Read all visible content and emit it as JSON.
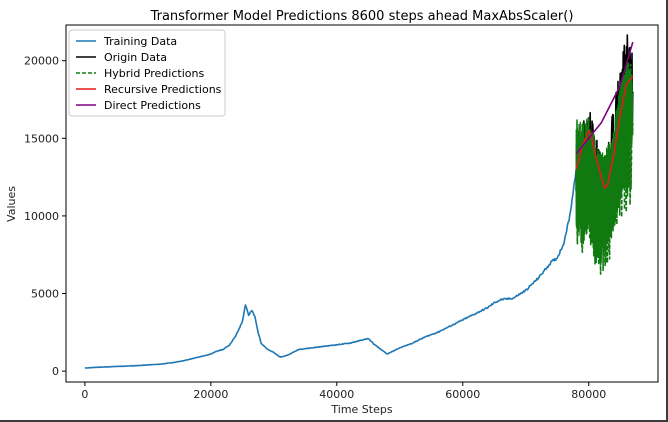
{
  "chart_data": {
    "type": "line",
    "title": "Transformer Model Predictions 8600 steps ahead MaxAbsScaler()",
    "xlabel": "Time Steps",
    "ylabel": "Values",
    "xlim": [
      -3000,
      91000
    ],
    "ylim": [
      -700,
      22300
    ],
    "xticks": [
      0,
      20000,
      40000,
      60000,
      80000
    ],
    "xtick_labels": [
      "0",
      "20000",
      "40000",
      "60000",
      "80000"
    ],
    "yticks": [
      0,
      5000,
      10000,
      15000,
      20000
    ],
    "ytick_labels": [
      "0",
      "5000",
      "10000",
      "15000",
      "20000"
    ],
    "grid": false,
    "legend_position": "top-left",
    "series": [
      {
        "name": "Training Data",
        "color": "#1f77b4",
        "style": "solid",
        "x": [
          0,
          2000,
          5000,
          8000,
          10000,
          12000,
          14000,
          16000,
          18000,
          19000,
          20000,
          21000,
          22000,
          23000,
          24000,
          25000,
          25500,
          26000,
          26500,
          27000,
          27500,
          28000,
          29000,
          30000,
          31000,
          32000,
          33000,
          34000,
          36000,
          38000,
          40000,
          42000,
          44000,
          45000,
          46000,
          47000,
          48000,
          50000,
          52000,
          54000,
          56000,
          58000,
          60000,
          62000,
          64000,
          65000,
          66000,
          68000,
          70000,
          72000,
          74000,
          75000,
          76000,
          77000,
          77500,
          78000
        ],
        "y": [
          200,
          250,
          300,
          350,
          400,
          450,
          550,
          700,
          900,
          1000,
          1100,
          1300,
          1400,
          1700,
          2300,
          3200,
          4300,
          3600,
          3900,
          3500,
          2500,
          1800,
          1400,
          1200,
          900,
          1000,
          1200,
          1400,
          1500,
          1600,
          1700,
          1800,
          2000,
          2100,
          1700,
          1400,
          1100,
          1500,
          1800,
          2200,
          2500,
          2900,
          3300,
          3700,
          4100,
          4400,
          4600,
          4700,
          5200,
          6000,
          7000,
          7300,
          8200,
          10000,
          11500,
          13000
        ]
      },
      {
        "name": "Origin Data",
        "color": "#000000",
        "style": "solid",
        "x": [
          78000,
          79000,
          80000,
          81000,
          82000,
          82500,
          83000,
          84000,
          85000,
          86000,
          86500,
          87000
        ],
        "y": [
          13000,
          14000,
          15000,
          14000,
          12000,
          11000,
          13000,
          15000,
          18000,
          19000,
          20500,
          18000
        ]
      },
      {
        "name": "Hybrid Predictions",
        "color": "#107a10",
        "style": "dashed",
        "x": [
          78000,
          79000,
          80000,
          81000,
          82000,
          83000,
          84000,
          85000,
          86000,
          87000
        ],
        "y": [
          12000,
          11000,
          12000,
          10000,
          9000,
          10000,
          12000,
          14000,
          15000,
          16000
        ],
        "band_low": [
          9000,
          8000,
          9000,
          7500,
          7000,
          8000,
          9000,
          11000,
          12000,
          15000
        ],
        "band_high": [
          16500,
          16000,
          16500,
          15000,
          14000,
          14500,
          15500,
          18500,
          20000,
          19000
        ]
      },
      {
        "name": "Recursive Predictions",
        "color": "#e41a1c",
        "style": "solid",
        "x": [
          78000,
          79000,
          80000,
          80500,
          81000,
          82000,
          82500,
          83000,
          84000,
          85000,
          86000,
          87000
        ],
        "y": [
          13000,
          14500,
          15500,
          15000,
          14000,
          12500,
          11800,
          12000,
          14000,
          16500,
          18500,
          19000
        ]
      },
      {
        "name": "Direct Predictions",
        "color": "#800080",
        "style": "solid",
        "x": [
          78000,
          79000,
          80000,
          81000,
          82000,
          83000,
          84000,
          85000,
          86000,
          87000
        ],
        "y": [
          14000,
          14500,
          15000,
          15500,
          16000,
          16800,
          17600,
          18400,
          19800,
          21200
        ]
      }
    ]
  }
}
